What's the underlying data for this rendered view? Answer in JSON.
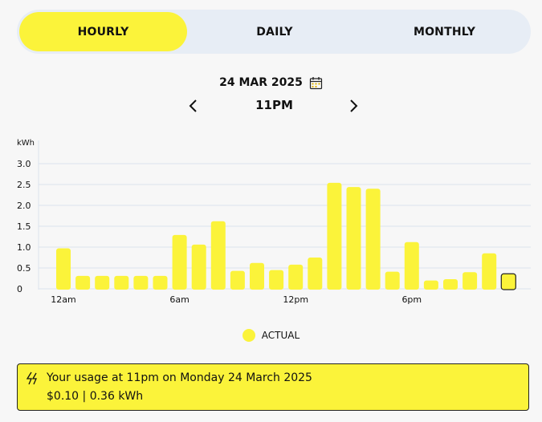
{
  "tabs": [
    {
      "label": "HOURLY",
      "active": true
    },
    {
      "label": "DAILY",
      "active": false
    },
    {
      "label": "MONTHLY",
      "active": false
    }
  ],
  "date": {
    "label": "24 MAR 2025",
    "icon": "calendar-icon"
  },
  "hour_nav": {
    "label": "11PM",
    "prev_icon": "chevron-left-icon",
    "next_icon": "chevron-right-icon"
  },
  "legend": {
    "label": "ACTUAL"
  },
  "summary": {
    "icon": "lightning-icon",
    "line1": "Your usage at 11pm on Monday 24 March 2025",
    "line2": "$0.10 | 0.36 kWh"
  },
  "colors": {
    "accent": "#fbf33a",
    "tab_bg": "#e7edf5",
    "grid": "#dbe3ee",
    "selected_outline": "#222222"
  },
  "chart_data": {
    "type": "bar",
    "ylabel": "kWh",
    "ylim": [
      0,
      3.0
    ],
    "yticks": [
      "0",
      "0.5",
      "1.0",
      "1.5",
      "2.0",
      "2.5",
      "3.0"
    ],
    "ytick_values": [
      0,
      0.5,
      1.0,
      1.5,
      2.0,
      2.5,
      3.0
    ],
    "xtick_labels": [
      {
        "label": "12am",
        "hour": 0
      },
      {
        "label": "6am",
        "hour": 6
      },
      {
        "label": "12pm",
        "hour": 12
      },
      {
        "label": "6pm",
        "hour": 18
      }
    ],
    "grid": true,
    "selected_index": 23,
    "series": [
      {
        "name": "ACTUAL",
        "values": [
          0.97,
          0.31,
          0.31,
          0.31,
          0.31,
          0.31,
          1.29,
          1.06,
          1.62,
          0.43,
          0.62,
          0.45,
          0.58,
          0.75,
          2.54,
          2.44,
          2.4,
          0.41,
          1.12,
          0.2,
          0.23,
          0.4,
          0.85,
          0.36
        ]
      }
    ]
  }
}
